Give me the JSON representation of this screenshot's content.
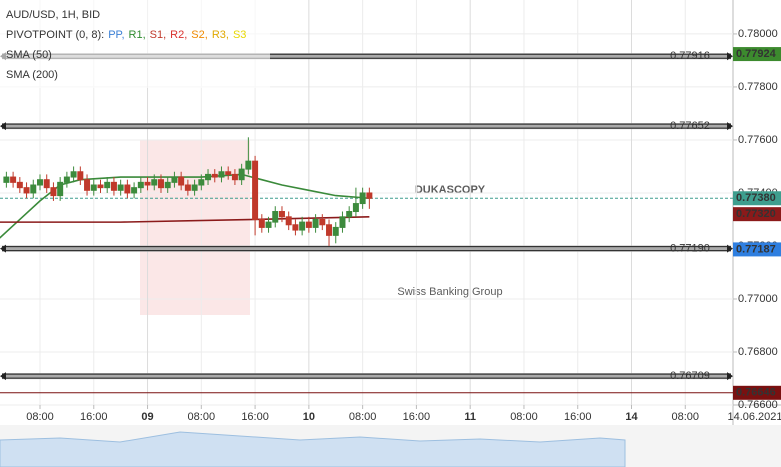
{
  "chart_data": {
    "type": "candlestick",
    "title": "AUD/USD, 1H, BID",
    "x": [
      3,
      4,
      5,
      6,
      7,
      8,
      9,
      10,
      11,
      12,
      13,
      14,
      15,
      16,
      17,
      18,
      19,
      20,
      21,
      22,
      23,
      24,
      25,
      26,
      27,
      28,
      29,
      30,
      31,
      32,
      33,
      34,
      35,
      36,
      37,
      38,
      39,
      40,
      41,
      42,
      43,
      44,
      45,
      46,
      47,
      48,
      49,
      50,
      51,
      52,
      53,
      54,
      55,
      56,
      57
    ],
    "open": [
      0.7744,
      0.7746,
      0.7744,
      0.7742,
      0.774,
      0.7743,
      0.7745,
      0.7742,
      0.7739,
      0.7744,
      0.7746,
      0.7748,
      0.7745,
      0.7741,
      0.7743,
      0.7742,
      0.7744,
      0.7741,
      0.7743,
      0.774,
      0.7742,
      0.7744,
      0.7743,
      0.7745,
      0.7742,
      0.7744,
      0.7746,
      0.7743,
      0.7741,
      0.7743,
      0.7745,
      0.7747,
      0.7746,
      0.7748,
      0.7747,
      0.7745,
      0.7749,
      0.7752,
      0.773,
      0.7727,
      0.7729,
      0.7733,
      0.7731,
      0.7728,
      0.7726,
      0.7729,
      0.7727,
      0.773,
      0.7728,
      0.7724,
      0.7727,
      0.7731,
      0.7733,
      0.7736,
      0.774
    ],
    "high": [
      0.7748,
      0.7748,
      0.7746,
      0.7744,
      0.7745,
      0.7747,
      0.7747,
      0.7744,
      0.7746,
      0.7748,
      0.775,
      0.775,
      0.7747,
      0.7745,
      0.7745,
      0.7746,
      0.7746,
      0.7745,
      0.7745,
      0.7744,
      0.7746,
      0.7746,
      0.7747,
      0.7747,
      0.7746,
      0.7748,
      0.7748,
      0.7745,
      0.7745,
      0.7747,
      0.7749,
      0.7749,
      0.775,
      0.775,
      0.7749,
      0.7751,
      0.7761,
      0.7754,
      0.7732,
      0.7731,
      0.7735,
      0.7735,
      0.7733,
      0.773,
      0.7731,
      0.7731,
      0.7732,
      0.7732,
      0.773,
      0.7729,
      0.7733,
      0.7735,
      0.7742,
      0.7742,
      0.7742
    ],
    "low": [
      0.7742,
      0.7742,
      0.774,
      0.7738,
      0.7738,
      0.7741,
      0.774,
      0.7737,
      0.7737,
      0.7742,
      0.7744,
      0.7743,
      0.7739,
      0.7739,
      0.774,
      0.774,
      0.7739,
      0.7739,
      0.7738,
      0.7738,
      0.774,
      0.7741,
      0.7741,
      0.774,
      0.774,
      0.7742,
      0.7741,
      0.7739,
      0.7739,
      0.7741,
      0.7743,
      0.7744,
      0.7744,
      0.7745,
      0.7743,
      0.7743,
      0.7747,
      0.7724,
      0.7725,
      0.7725,
      0.7727,
      0.7729,
      0.7726,
      0.7724,
      0.7724,
      0.7725,
      0.7725,
      0.7726,
      0.772,
      0.7721,
      0.7725,
      0.7729,
      0.7731,
      0.7734,
      0.7734
    ],
    "close": [
      0.7746,
      0.7744,
      0.7742,
      0.774,
      0.7743,
      0.7745,
      0.7742,
      0.7739,
      0.7744,
      0.7746,
      0.7748,
      0.7745,
      0.7741,
      0.7743,
      0.7742,
      0.7744,
      0.7741,
      0.7743,
      0.774,
      0.7742,
      0.7744,
      0.7743,
      0.7745,
      0.7742,
      0.7744,
      0.7746,
      0.7743,
      0.7741,
      0.7743,
      0.7745,
      0.7747,
      0.7746,
      0.7748,
      0.7747,
      0.7745,
      0.7749,
      0.7752,
      0.773,
      0.7727,
      0.7729,
      0.7733,
      0.7731,
      0.7728,
      0.7726,
      0.7729,
      0.7727,
      0.773,
      0.7728,
      0.7724,
      0.7727,
      0.7731,
      0.7733,
      0.7736,
      0.774,
      0.7738
    ],
    "up_color": "#3d8b3d",
    "down_color": "#c0392b",
    "xlim": [
      2.05,
      111.1
    ],
    "xticks": [
      {
        "value": 8,
        "label": "08:00"
      },
      {
        "value": 16,
        "label": "16:00"
      },
      {
        "value": 24,
        "label": "09"
      },
      {
        "value": 32,
        "label": "08:00"
      },
      {
        "value": 40,
        "label": "16:00"
      },
      {
        "value": 48,
        "label": "10"
      },
      {
        "value": 56,
        "label": "08:00"
      },
      {
        "value": 64,
        "label": "16:00"
      },
      {
        "value": 72,
        "label": "11"
      },
      {
        "value": 80,
        "label": "08:00"
      },
      {
        "value": 88,
        "label": "16:00"
      },
      {
        "value": 96,
        "label": "14"
      },
      {
        "value": 104,
        "label": "08:00"
      }
    ],
    "ylim": [
      0.766,
      0.78128
    ],
    "yticks": [
      {
        "value": 0.78,
        "label": "0.78000"
      },
      {
        "value": 0.778,
        "label": "0.77800"
      },
      {
        "value": 0.776,
        "label": "0.77600"
      },
      {
        "value": 0.774,
        "label": "0.77400"
      },
      {
        "value": 0.772,
        "label": "0.77200"
      },
      {
        "value": 0.77,
        "label": "0.77000"
      },
      {
        "value": 0.768,
        "label": "0.76800"
      },
      {
        "value": 0.766,
        "label": "0.76600"
      }
    ],
    "grid": true,
    "indicators": [
      {
        "name": "SMA (50)",
        "color": "#3a8a3a",
        "x": [
          2,
          5,
          8,
          11,
          14,
          20,
          26,
          32,
          38,
          41,
          44,
          48,
          52,
          57
        ],
        "values": [
          0.7723,
          0.773,
          0.7737,
          0.7743,
          0.7745,
          0.7746,
          0.7746,
          0.7746,
          0.7747,
          0.7745,
          0.7743,
          0.7741,
          0.7739,
          0.7738
        ]
      },
      {
        "name": "SMA (200)",
        "color": "#8b1a1a",
        "x": [
          2,
          20,
          40,
          57
        ],
        "values": [
          0.7729,
          0.7729,
          0.773,
          0.7731
        ]
      }
    ],
    "pivot_legend": {
      "label": "PIVOTPOINT (0, 8):",
      "items": [
        {
          "name": "PP,",
          "color": "#3a7fd5"
        },
        {
          "name": "R1,",
          "color": "#2e8b2e"
        },
        {
          "name": "S1,",
          "color": "#c0392b"
        },
        {
          "name": "R2,",
          "color": "#d9302c"
        },
        {
          "name": "S2,",
          "color": "#f08a00"
        },
        {
          "name": "R3,",
          "color": "#e0a800"
        },
        {
          "name": "S3",
          "color": "#e8d800"
        }
      ]
    },
    "pivot_levels": [
      {
        "value": 0.77916,
        "label": "0.77916"
      },
      {
        "value": 0.77652,
        "label": "0.77652"
      },
      {
        "value": 0.7719,
        "label": "0.77190"
      },
      {
        "value": 0.76709,
        "label": "0.76709"
      }
    ],
    "price_tags": [
      {
        "value": 0.77924,
        "label": "0.77924",
        "color": "#3c8a2e"
      },
      {
        "value": 0.7738,
        "label": "0.77380",
        "color": "#3e9e8e",
        "line": "dashed"
      },
      {
        "value": 0.7732,
        "label": "0.77320",
        "color": "#8b1a1a"
      },
      {
        "value": 0.77187,
        "label": "0.77187",
        "color": "#2f7fe0"
      },
      {
        "value": 0.76646,
        "label": "0.76646",
        "color": "#7a1010",
        "line": "solid"
      }
    ],
    "date_label": "14.06.2021",
    "watermark": [
      "DUKASCOPY",
      "Swiss Banking Group"
    ]
  }
}
